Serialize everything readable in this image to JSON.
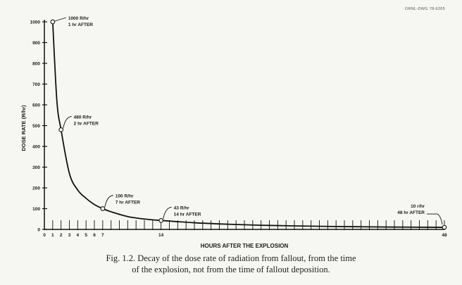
{
  "drawing_number": "ORNL-DWG 78-6265",
  "caption": {
    "line1": "Fig. 1.2. Decay of the dose rate of radiation from fallout, from the time",
    "line2": "of the explosion, not from the time of fallout deposition."
  },
  "chart_data": {
    "type": "line",
    "title": "",
    "xlabel": "HOURS AFTER THE EXPLOSION",
    "ylabel": "DOSE RATE (R/hr)",
    "xlim": [
      0,
      48
    ],
    "ylim": [
      0,
      1000
    ],
    "y_ticks": [
      0,
      100,
      200,
      300,
      400,
      500,
      600,
      700,
      800,
      900,
      1000
    ],
    "x_tick_labels": [
      {
        "x": 0,
        "label": "0"
      },
      {
        "x": 1,
        "label": "1"
      },
      {
        "x": 2,
        "label": "2"
      },
      {
        "x": 3,
        "label": "3"
      },
      {
        "x": 4,
        "label": "4"
      },
      {
        "x": 5,
        "label": "5"
      },
      {
        "x": 6,
        "label": "6"
      },
      {
        "x": 7,
        "label": "7"
      },
      {
        "x": 14,
        "label": "14"
      },
      {
        "x": 48,
        "label": "48"
      }
    ],
    "x_minor_ticks_every": 1,
    "grid": false,
    "series": [
      {
        "x": [
          1,
          1.5,
          2,
          3,
          4,
          5,
          6,
          7,
          8,
          10,
          12,
          14,
          18,
          22,
          26,
          30,
          34,
          38,
          42,
          46,
          48
        ],
        "y": [
          1000,
          620,
          480,
          270,
          190,
          150,
          120,
          100,
          85,
          62,
          50,
          43,
          32,
          25,
          20,
          17,
          14.5,
          12.8,
          11.3,
          10.3,
          10
        ]
      }
    ],
    "annotations": [
      {
        "x": 1,
        "y": 1000,
        "line1": "1000 R/hr",
        "line2": "1 hr AFTER",
        "side": "right"
      },
      {
        "x": 2,
        "y": 480,
        "line1": "480 R/hr",
        "line2": "2 hr AFTER",
        "side": "right"
      },
      {
        "x": 7,
        "y": 100,
        "line1": "100 R/hr",
        "line2": "7 hr AFTER",
        "side": "right"
      },
      {
        "x": 14,
        "y": 43,
        "line1": "43 R/hr",
        "line2": "14 hr AFTER",
        "side": "right"
      },
      {
        "x": 48,
        "y": 10,
        "line1": "10 r/hr",
        "line2": "48 hr AFTER",
        "side": "left"
      }
    ],
    "line_color": "#111111"
  }
}
